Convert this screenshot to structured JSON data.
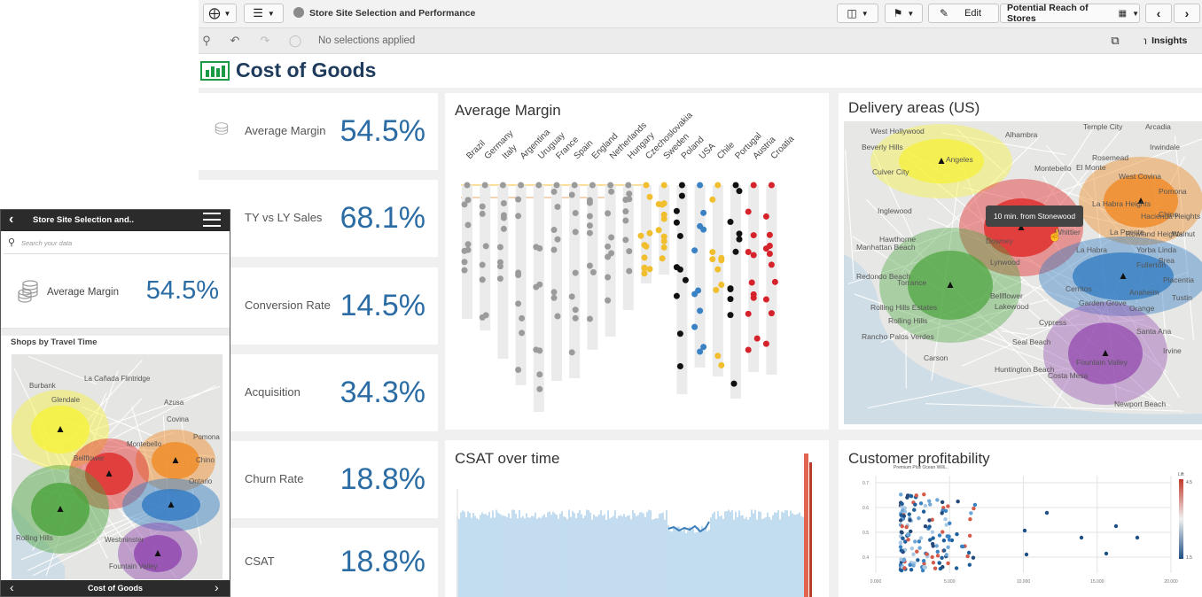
{
  "toolbar": {
    "app_title": "Store Site Selection and Performance",
    "edit_label": "Edit",
    "sheet_name": "Potential Reach of Stores",
    "insights_label": "Insights"
  },
  "selections": {
    "status": "No selections applied"
  },
  "sheet": {
    "title": "Cost of Goods",
    "brand_color": "#1b9a45"
  },
  "kpis": [
    {
      "label": "Average Margin",
      "value": "54.5%"
    },
    {
      "label": "TY vs LY Sales",
      "value": "68.1%"
    },
    {
      "label": "Conversion Rate",
      "value": "14.5%"
    },
    {
      "label": "Acquisition",
      "value": "34.3%"
    },
    {
      "label": "Churn Rate",
      "value": "18.8%"
    },
    {
      "label": "CSAT",
      "value": "18.8%"
    }
  ],
  "margin_chart": {
    "title": "Average Margin",
    "countries": [
      "Brazil",
      "Germany",
      "Italy",
      "Argentina",
      "Uruguay",
      "France",
      "Spain",
      "England",
      "Netherlands",
      "Hungary",
      "Czechoslovakia",
      "Sweden",
      "Poland",
      "USA",
      "Chile",
      "Portugal",
      "Austria",
      "Croatia"
    ],
    "colors": {
      "gray": "#9b9b9b",
      "yellow": "#f1be2e",
      "black": "#111111",
      "blue": "#3b82c4",
      "red": "#d6222a"
    }
  },
  "map_us": {
    "title": "Delivery areas (US)",
    "tooltip": "10 min. from Stonewood",
    "places": [
      "West Hollywood",
      "Alhambra",
      "Temple City",
      "Arcadia",
      "Beverly Hills",
      "Angeles",
      "Rosemead",
      "Irwindale",
      "Culver City",
      "Montebello",
      "El Monte",
      "West Covina",
      "Inglewood",
      "Whittier",
      "La Puente",
      "Hawthorne",
      "Downey",
      "Hacienda Heights",
      "Rowland Heights",
      "Lynwood",
      "La Habra",
      "Walnut",
      "Manhattan Beach",
      "Redondo Beach",
      "Torrance",
      "Bellflower",
      "Lakewood",
      "Cerritos",
      "Fullerton",
      "Brea",
      "Placentia",
      "Anaheim",
      "Orange",
      "Tustin",
      "Rolling Hills Estates",
      "Rolling Hills",
      "Rancho Palos Verdes",
      "Seal Beach",
      "Santa Ana",
      "Irvine",
      "Fountain Valley",
      "Huntington Beach",
      "Costa Mesa",
      "Newport Beach",
      "La Habra Heights",
      "Chino",
      "Pomona",
      "Yorba Linda",
      "Carson",
      "Garden Grove",
      "Cypress"
    ]
  },
  "csat_chart": {
    "title": "CSAT over time"
  },
  "profit_chart": {
    "title": "Customer profitability",
    "legend_title": "Lift",
    "legend_max": "4.5",
    "legend_min": "1.5",
    "point_label": "Premium Plus Ocean Willi...",
    "y_ticks": [
      "0.7",
      "0.6",
      "0.5",
      "0.4"
    ],
    "x_ticks": [
      "0.000",
      "5.000",
      "10.000",
      "15.000",
      "20.000"
    ]
  },
  "mobile": {
    "title": "Store Site Selection and..",
    "search_placeholder": "Search your data",
    "kpi_label": "Average Margin",
    "kpi_value": "54.5%",
    "map_title": "Shops by Travel Time",
    "places": [
      "Burbank",
      "La Cañada Flintridge",
      "Glendale",
      "Azusa",
      "Covina",
      "Pomona",
      "Chino",
      "Ontario",
      "Rolling Hills",
      "Fountain Valley",
      "Westminster",
      "Bellflower",
      "Montebello"
    ],
    "footer_title": "Cost of Goods"
  }
}
